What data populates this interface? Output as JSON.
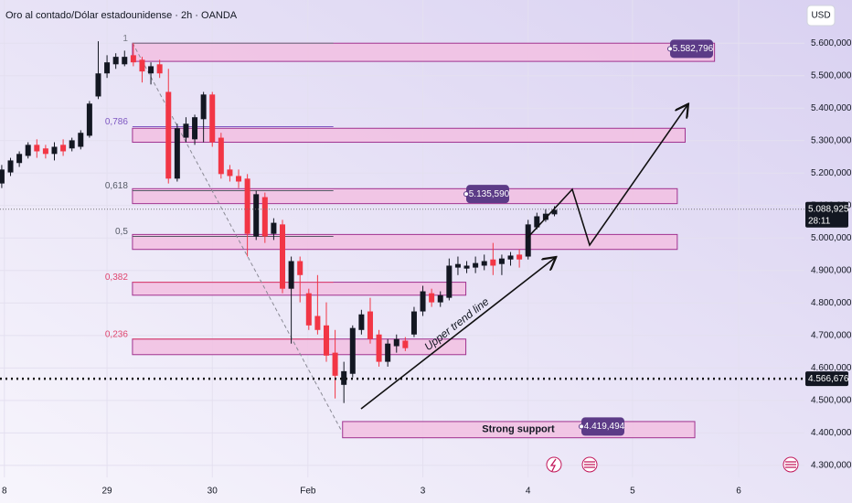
{
  "chart_data": {
    "type": "candlestick",
    "title": "Oro al contado/Dólar estadounidense · 2h · OANDA",
    "currency": "USD",
    "x": [
      0,
      1,
      2,
      3,
      4,
      5,
      6,
      7,
      8,
      9,
      10,
      11,
      12,
      13,
      14,
      15,
      16,
      17,
      18,
      19,
      20,
      21,
      22,
      23,
      24,
      25,
      26,
      27,
      28,
      29,
      30,
      31,
      32,
      33,
      34,
      35,
      36,
      37,
      38,
      39,
      40,
      41,
      42,
      43,
      44,
      45,
      46,
      47,
      48,
      49,
      50,
      51,
      52,
      53,
      54,
      55,
      56,
      57,
      58,
      59,
      60,
      61,
      62,
      63
    ],
    "open": [
      5168,
      5202,
      5231,
      5253,
      5287,
      5276,
      5259,
      5287,
      5276,
      5281,
      5315,
      5436,
      5507,
      5535,
      5535,
      5563,
      5549,
      5507,
      5535,
      5450,
      5183,
      5309,
      5304,
      5366,
      5442,
      5309,
      5211,
      5191,
      5183,
      5005,
      5126,
      5013,
      5042,
      4844,
      4929,
      4830,
      4760,
      4731,
      4647,
      4548,
      4582,
      4717,
      4774,
      4703,
      4619,
      4667,
      4684,
      4703,
      4774,
      4830,
      4802,
      4816,
      4909,
      4906,
      4909,
      4915,
      4934,
      4920,
      4934,
      4949,
      4943,
      5033,
      5056,
      5073
    ],
    "high": [
      5225,
      5247,
      5267,
      5295,
      5304,
      5287,
      5295,
      5304,
      5309,
      5332,
      5422,
      5606,
      5563,
      5569,
      5577,
      5600,
      5558,
      5541,
      5549,
      5521,
      5352,
      5372,
      5380,
      5450,
      5450,
      5324,
      5225,
      5211,
      5197,
      5146,
      5140,
      5061,
      5056,
      4943,
      4943,
      4844,
      4886,
      4802,
      4717,
      4619,
      4731,
      4779,
      4816,
      4717,
      4689,
      4703,
      4695,
      4788,
      4853,
      4844,
      4836,
      4937,
      4943,
      4929,
      4943,
      4949,
      4985,
      4949,
      4957,
      4965,
      5056,
      5078,
      5089,
      5098
    ],
    "low": [
      5154,
      5191,
      5219,
      5245,
      5247,
      5245,
      5239,
      5253,
      5267,
      5273,
      5309,
      5428,
      5493,
      5521,
      5529,
      5529,
      5479,
      5473,
      5493,
      5168,
      5174,
      5295,
      5287,
      5295,
      5281,
      5183,
      5174,
      5154,
      4943,
      4994,
      4985,
      4994,
      4830,
      4675,
      4802,
      4717,
      4703,
      4619,
      4506,
      4492,
      4571,
      4703,
      4675,
      4604,
      4604,
      4647,
      4652,
      4695,
      4760,
      4788,
      4788,
      4808,
      4886,
      4892,
      4892,
      4901,
      4886,
      4886,
      4915,
      4909,
      4934,
      5027,
      5050,
      5067
    ],
    "close": [
      5211,
      5239,
      5259,
      5287,
      5267,
      5259,
      5281,
      5267,
      5301,
      5324,
      5414,
      5507,
      5541,
      5558,
      5558,
      5541,
      5513,
      5529,
      5507,
      5183,
      5338,
      5352,
      5372,
      5442,
      5295,
      5197,
      5191,
      5174,
      5013,
      5135,
      5005,
      5047,
      4844,
      4929,
      4886,
      4731,
      4717,
      4638,
      4576,
      4590,
      4723,
      4765,
      4689,
      4619,
      4675,
      4689,
      4661,
      4774,
      4836,
      4802,
      4824,
      4915,
      4920,
      4915,
      4923,
      4929,
      4915,
      4937,
      4946,
      4934,
      5042,
      5067,
      5075,
      5087
    ],
    "up_color": "#131722",
    "down_color": "#f23645",
    "xlim": [
      -0.2,
      91.5
    ],
    "xticks": [
      {
        "value": 0.3,
        "label": "8"
      },
      {
        "value": 12,
        "label": "29"
      },
      {
        "value": 24,
        "label": "30"
      },
      {
        "value": 34.9,
        "label": "Feb"
      },
      {
        "value": 48,
        "label": "3"
      },
      {
        "value": 60,
        "label": "4"
      },
      {
        "value": 71.9,
        "label": "5"
      },
      {
        "value": 84,
        "label": "6"
      }
    ],
    "ylim": [
      4263,
      5733
    ],
    "yticks": [
      {
        "value": 5600,
        "label": "5.600,000"
      },
      {
        "value": 5500,
        "label": "5.500,000"
      },
      {
        "value": 5400,
        "label": "5.400,000"
      },
      {
        "value": 5300,
        "label": "5.300,000"
      },
      {
        "value": 5200,
        "label": "5.200,000"
      },
      {
        "value": 5100,
        "label": "5.100,000"
      },
      {
        "value": 5000,
        "label": "5.000,000"
      },
      {
        "value": 4900,
        "label": "4.900,000"
      },
      {
        "value": 4800,
        "label": "4.800,000"
      },
      {
        "value": 4700,
        "label": "4.700,000"
      },
      {
        "value": 4600,
        "label": "4.600,000"
      },
      {
        "value": 4500,
        "label": "4.500,000"
      },
      {
        "value": 4400,
        "label": "4.400,000"
      },
      {
        "value": 4300,
        "label": "4.300,000"
      }
    ],
    "grid": true,
    "fib_x": [
      14.9,
      37.8
    ],
    "fib_levels": [
      {
        "label": "1",
        "price": 5600,
        "color": "#787b86"
      },
      {
        "label": "0,786",
        "price": 5343,
        "color": "#7e57c2"
      },
      {
        "label": "0,618",
        "price": 5146,
        "color": "#555a66"
      },
      {
        "label": "0,5",
        "price": 5005,
        "color": "#555a66"
      },
      {
        "label": "0,382",
        "price": 4864,
        "color": "#e0466f"
      },
      {
        "label": "0,236",
        "price": 4689,
        "color": "#e0466f"
      }
    ],
    "zone_color": "#f2c0e2",
    "zone_border": "#a0328f",
    "badge_color": "#5c3b87",
    "zones": [
      {
        "x_start": 14.9,
        "x_end": 81.25,
        "top": 5600,
        "bottom": 5544,
        "badge": {
          "value": 5582.796,
          "label": "5.582,796"
        }
      },
      {
        "x_start": 14.9,
        "x_end": 77.9,
        "top": 5338,
        "bottom": 5295
      },
      {
        "x_start": 14.9,
        "x_end": 77,
        "top": 5152,
        "bottom": 5106,
        "badge": {
          "value": 5135.59,
          "label": "5.135,590"
        }
      },
      {
        "x_start": 14.9,
        "x_end": 77,
        "top": 5011,
        "bottom": 4965
      },
      {
        "x_start": 14.9,
        "x_end": 52.9,
        "top": 4864,
        "bottom": 4824
      },
      {
        "x_start": 14.9,
        "x_end": 52.9,
        "top": 4689,
        "bottom": 4641
      },
      {
        "x_start": 38.85,
        "x_end": 79,
        "top": 4435,
        "bottom": 4385,
        "text": "Strong support",
        "badge": {
          "value": 4419.494,
          "label": "4.419,494"
        }
      }
    ],
    "price_lines": [
      {
        "value": 5088.925,
        "label": "5.088,925",
        "countdown": "28:11"
      },
      {
        "value": 4566.676,
        "label": "4.566,676"
      }
    ],
    "annotation": "Upper trend line"
  }
}
